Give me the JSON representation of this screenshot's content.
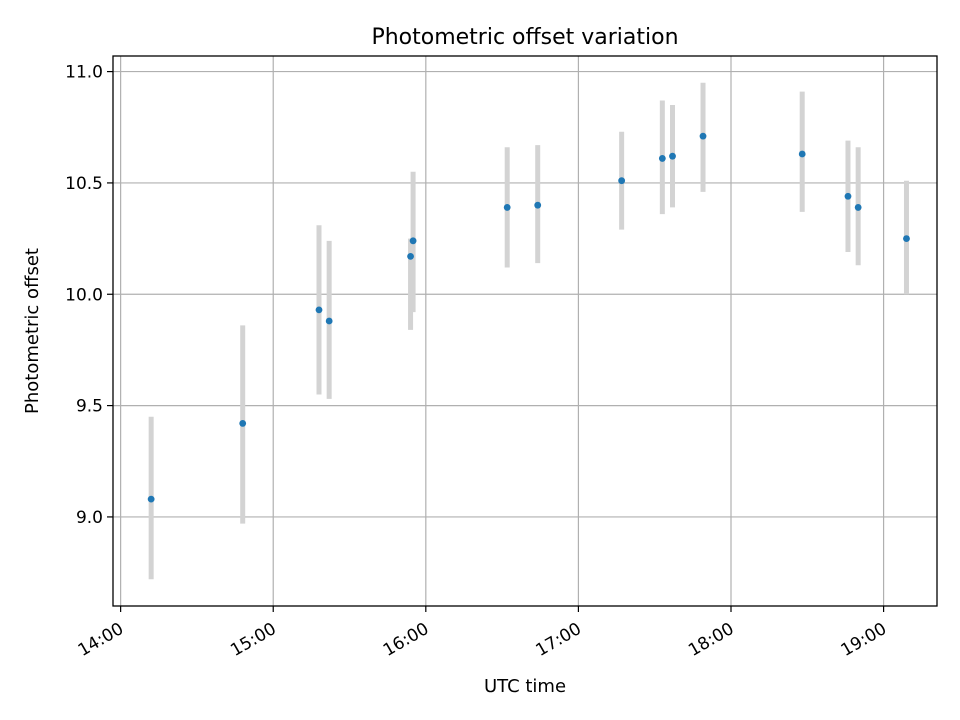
{
  "chart_data": {
    "type": "scatter",
    "title": "Photometric offset variation",
    "xlabel": "UTC time",
    "ylabel": "Photometric offset",
    "xlim": [
      "13:57",
      "19:21"
    ],
    "ylim": [
      8.6,
      11.07
    ],
    "x_ticks": [
      "14:00",
      "15:00",
      "16:00",
      "17:00",
      "18:00",
      "19:00"
    ],
    "y_ticks": [
      9.0,
      9.5,
      10.0,
      10.5,
      11.0
    ],
    "y_tick_labels": [
      "9.0",
      "9.5",
      "10.0",
      "10.5",
      "11.0"
    ],
    "grid": true,
    "marker_color": "#1f77b4",
    "errorbar_color": "#d3d3d3",
    "series": [
      {
        "points": [
          {
            "x": "14:12",
            "y": 9.08,
            "lo": 8.72,
            "hi": 9.45
          },
          {
            "x": "14:48",
            "y": 9.42,
            "lo": 8.97,
            "hi": 9.86
          },
          {
            "x": "15:18",
            "y": 9.93,
            "lo": 9.55,
            "hi": 10.31
          },
          {
            "x": "15:22",
            "y": 9.88,
            "lo": 9.53,
            "hi": 10.24
          },
          {
            "x": "15:54",
            "y": 10.17,
            "lo": 9.84,
            "hi": 10.25
          },
          {
            "x": "15:55",
            "y": 10.24,
            "lo": 9.92,
            "hi": 10.55
          },
          {
            "x": "16:32",
            "y": 10.39,
            "lo": 10.12,
            "hi": 10.66
          },
          {
            "x": "16:44",
            "y": 10.4,
            "lo": 10.14,
            "hi": 10.67
          },
          {
            "x": "17:17",
            "y": 10.51,
            "lo": 10.29,
            "hi": 10.73
          },
          {
            "x": "17:33",
            "y": 10.61,
            "lo": 10.36,
            "hi": 10.87
          },
          {
            "x": "17:37",
            "y": 10.62,
            "lo": 10.39,
            "hi": 10.85
          },
          {
            "x": "17:49",
            "y": 10.71,
            "lo": 10.46,
            "hi": 10.95
          },
          {
            "x": "18:28",
            "y": 10.63,
            "lo": 10.37,
            "hi": 10.91
          },
          {
            "x": "18:46",
            "y": 10.44,
            "lo": 10.19,
            "hi": 10.69
          },
          {
            "x": "18:50",
            "y": 10.39,
            "lo": 10.13,
            "hi": 10.66
          },
          {
            "x": "19:09",
            "y": 10.25,
            "lo": 10.0,
            "hi": 10.51
          }
        ]
      }
    ]
  }
}
